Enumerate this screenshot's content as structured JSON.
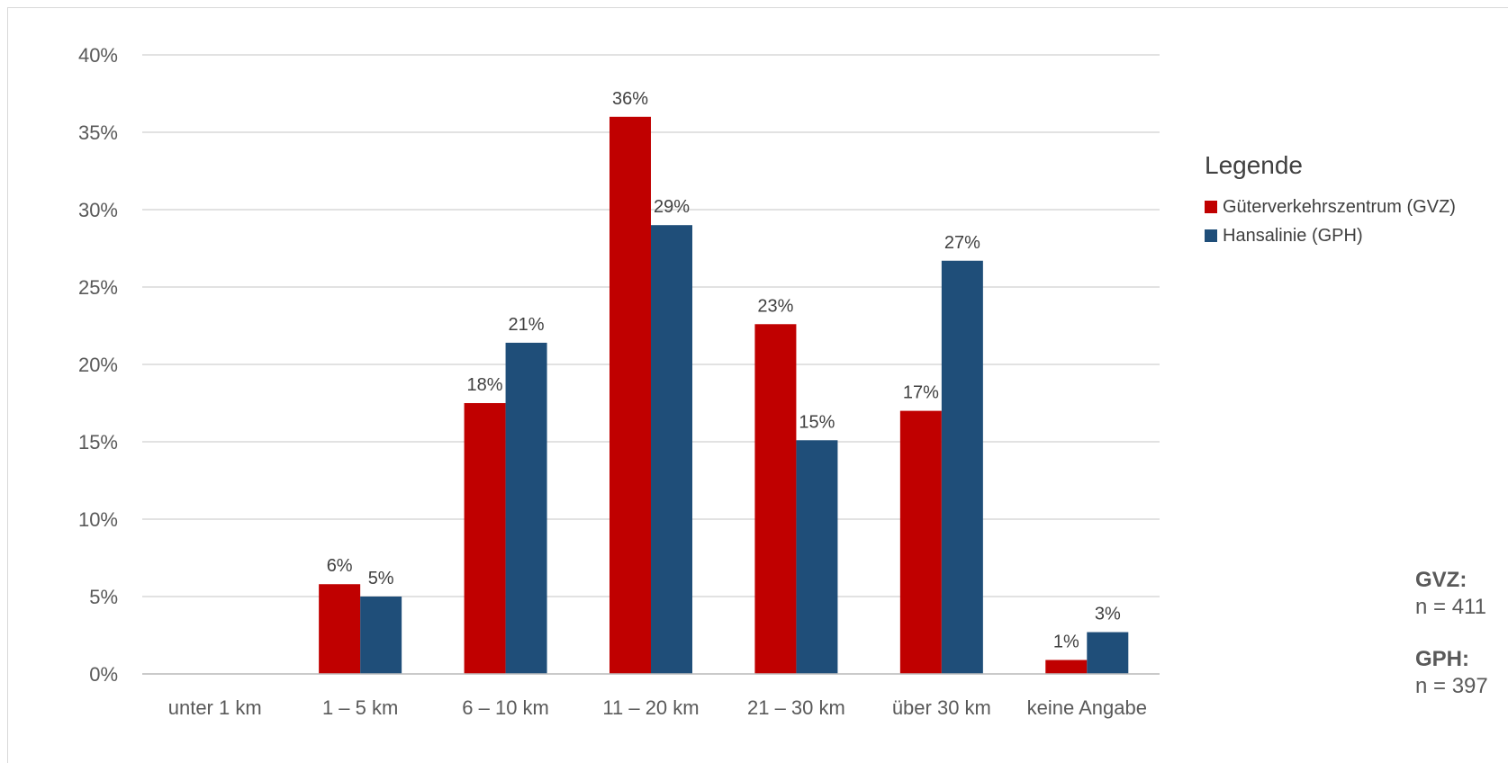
{
  "chart_data": {
    "type": "bar",
    "title": "",
    "xlabel": "",
    "ylabel": "",
    "categories": [
      "unter 1 km",
      "1 – 5 km",
      "6 – 10 km",
      "11 – 20 km",
      "21 – 30 km",
      "über 30 km",
      "keine Angabe"
    ],
    "series": [
      {
        "name": "Güterverkehrszentrum (GVZ)",
        "color": "#c00000",
        "values": [
          0,
          5.8,
          17.5,
          36.0,
          22.6,
          17.0,
          0.9
        ],
        "labels": [
          "",
          "6%",
          "18%",
          "36%",
          "23%",
          "17%",
          "1%"
        ]
      },
      {
        "name": "Hansalinie (GPH)",
        "color": "#1f4e79",
        "values": [
          0,
          5.0,
          21.4,
          29.0,
          15.1,
          26.7,
          2.7
        ],
        "labels": [
          "",
          "5%",
          "21%",
          "29%",
          "15%",
          "27%",
          "3%"
        ]
      }
    ],
    "ylim": [
      0,
      40
    ],
    "yticks": [
      0,
      5,
      10,
      15,
      20,
      25,
      30,
      35,
      40
    ],
    "ytick_labels": [
      "0%",
      "5%",
      "10%",
      "15%",
      "20%",
      "25%",
      "30%",
      "35%",
      "40%"
    ],
    "grid": true,
    "legend_position": "right"
  },
  "legend": {
    "title": "Legende"
  },
  "notes": [
    {
      "label": "GVZ:",
      "value": "n = 411"
    },
    {
      "label": "GPH:",
      "value": "n = 397"
    }
  ]
}
